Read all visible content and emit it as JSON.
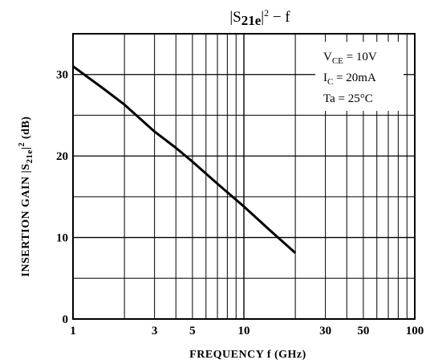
{
  "chart_data": {
    "type": "line",
    "title": "|S21e|² − f",
    "title_parts": {
      "pre": "|S",
      "sub": "21e",
      "post": "|",
      "sup": "2",
      "tail": " − f"
    },
    "xlabel": "FREQUENCY   f   (GHz)",
    "ylabel_parts": {
      "pre": "INSERTION GAIN   |S",
      "sub": "21e",
      "post": "|",
      "sup": "2",
      "tail": "   (dB)"
    },
    "x_scale": "log",
    "xlim": [
      1,
      100
    ],
    "ylim": [
      0,
      35
    ],
    "x_ticks": [
      1,
      3,
      5,
      10,
      30,
      50,
      100
    ],
    "x_tick_labels": [
      "1",
      "3",
      "5",
      "10",
      "30",
      "50",
      "100"
    ],
    "y_ticks": [
      0,
      10,
      20,
      30
    ],
    "y_tick_labels": [
      "0",
      "10",
      "20",
      "30"
    ],
    "grid": true,
    "conditions": [
      {
        "pre": "V",
        "sub": "CE",
        "post": " = 10V"
      },
      {
        "pre": "I",
        "sub": "C",
        "post": " = 20mA"
      },
      {
        "pre": "Ta = 25°C",
        "sub": "",
        "post": ""
      }
    ],
    "series": [
      {
        "x": [
          1,
          1.5,
          2,
          3,
          4,
          5,
          7,
          10,
          14,
          20
        ],
        "y": [
          31,
          28.3,
          26.3,
          23,
          21,
          19.3,
          16.6,
          13.8,
          11,
          8.1
        ]
      }
    ]
  }
}
